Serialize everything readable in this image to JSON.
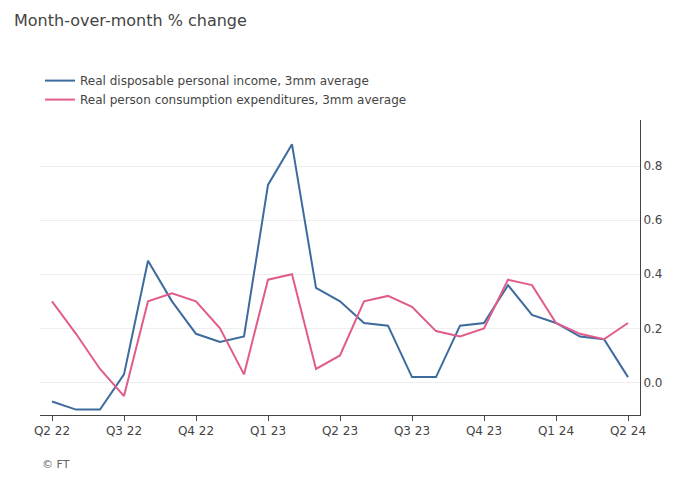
{
  "chart_data": {
    "type": "line",
    "title": "Month-over-month % change",
    "x": [
      0,
      1,
      2,
      3,
      4,
      5,
      6,
      7,
      8,
      9,
      10,
      11,
      12,
      13,
      14,
      15,
      16,
      17,
      18,
      19,
      20,
      21,
      22,
      23,
      24
    ],
    "series": [
      {
        "name": "Real disposable personal income, 3mm average",
        "color": "#3d6b9e",
        "values": [
          -0.07,
          -0.1,
          -0.1,
          0.03,
          0.45,
          0.3,
          0.18,
          0.15,
          0.17,
          0.73,
          0.88,
          0.35,
          0.3,
          0.22,
          0.21,
          0.02,
          0.02,
          0.21,
          0.22,
          0.36,
          0.25,
          0.22,
          0.17,
          0.16,
          0.02
        ]
      },
      {
        "name": "Real person consumption expenditures, 3mm average",
        "color": "#e05c8a",
        "values": [
          0.3,
          0.18,
          0.05,
          -0.05,
          0.3,
          0.33,
          0.3,
          0.2,
          0.03,
          0.38,
          0.4,
          0.05,
          0.1,
          0.3,
          0.32,
          0.28,
          0.19,
          0.17,
          0.2,
          0.38,
          0.36,
          0.22,
          0.18,
          0.16,
          0.22
        ]
      }
    ],
    "xlim": [
      -0.5,
      24.5
    ],
    "xticks": [
      {
        "value": 0,
        "label": "Q2 22"
      },
      {
        "value": 3,
        "label": "Q3 22"
      },
      {
        "value": 6,
        "label": "Q4 22"
      },
      {
        "value": 9,
        "label": "Q1 23"
      },
      {
        "value": 12,
        "label": "Q2 23"
      },
      {
        "value": 15,
        "label": "Q3 23"
      },
      {
        "value": 18,
        "label": "Q4 23"
      },
      {
        "value": 21,
        "label": "Q1 24"
      },
      {
        "value": 24,
        "label": "Q2 24"
      }
    ],
    "ylim": [
      -0.12,
      0.97
    ],
    "yticks": [
      {
        "value": 0.0,
        "label": "0.0"
      },
      {
        "value": 0.2,
        "label": "0.2"
      },
      {
        "value": 0.4,
        "label": "0.4"
      },
      {
        "value": 0.6,
        "label": "0.6"
      },
      {
        "value": 0.8,
        "label": "0.8"
      }
    ],
    "grid": true,
    "legend": "upper left",
    "annotations": [
      "© FT"
    ]
  }
}
